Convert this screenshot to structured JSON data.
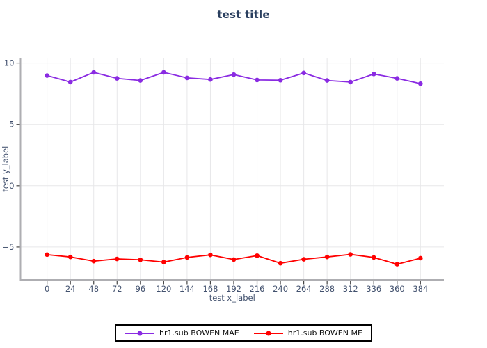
{
  "title": "test title",
  "chart_data": {
    "type": "line",
    "title": "test title",
    "xlabel": "test x_label",
    "ylabel": "test y_label",
    "x": [
      0,
      24,
      48,
      72,
      96,
      120,
      144,
      168,
      192,
      216,
      240,
      264,
      288,
      312,
      336,
      360,
      384
    ],
    "series": [
      {
        "name": "hr1.sub BOWEN MAE",
        "color": "#8a2be2",
        "values": [
          8.98,
          8.45,
          9.24,
          8.75,
          8.58,
          9.24,
          8.79,
          8.66,
          9.06,
          8.62,
          8.6,
          9.19,
          8.58,
          8.45,
          9.11,
          8.75,
          8.32
        ]
      },
      {
        "name": "hr1.sub BOWEN ME",
        "color": "#ff0000",
        "values": [
          -5.62,
          -5.81,
          -6.15,
          -5.97,
          -6.04,
          -6.23,
          -5.85,
          -5.64,
          -6.02,
          -5.7,
          -6.32,
          -6.0,
          -5.81,
          -5.6,
          -5.85,
          -6.4,
          -5.91
        ]
      }
    ],
    "x_ticks": [
      0,
      24,
      48,
      72,
      96,
      120,
      144,
      168,
      192,
      216,
      240,
      264,
      288,
      312,
      336,
      360,
      384
    ],
    "y_ticks": [
      -5,
      0,
      5,
      10
    ],
    "xlim": [
      -27.3,
      408.1
    ],
    "ylim": [
      -7.7,
      10.43
    ],
    "grid": true,
    "legend_position": "bottom-center",
    "colors": {
      "title": "#2a3f5f",
      "tick_label": "#42516e",
      "grid": "#e7e7e9",
      "spine": "#aeaeb2",
      "tick_mark": "#444444",
      "legend_border": "#000000",
      "background": "#ffffff"
    }
  }
}
